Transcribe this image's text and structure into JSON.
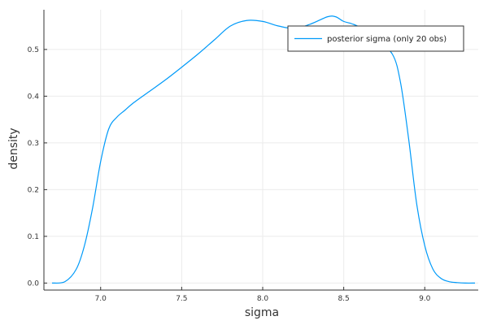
{
  "chart_data": {
    "type": "line",
    "title": "",
    "xlabel": "sigma",
    "ylabel": "density",
    "xlim": [
      6.65,
      9.33
    ],
    "ylim": [
      -0.015,
      0.585
    ],
    "x_ticks": [
      7.0,
      7.5,
      8.0,
      8.5,
      9.0
    ],
    "x_tick_labels": [
      "7.0",
      "7.5",
      "8.0",
      "8.5",
      "9.0"
    ],
    "y_ticks": [
      0.0,
      0.1,
      0.2,
      0.3,
      0.4,
      0.5
    ],
    "y_tick_labels": [
      "0.0",
      "0.1",
      "0.2",
      "0.3",
      "0.4",
      "0.5"
    ],
    "grid": true,
    "legend_position": "top-right",
    "series": [
      {
        "name": "posterior sigma (only 20 obs)",
        "color": "#009af9",
        "x": [
          6.7,
          6.78,
          6.85,
          6.9,
          6.95,
          7.0,
          7.05,
          7.1,
          7.15,
          7.2,
          7.3,
          7.4,
          7.5,
          7.6,
          7.7,
          7.8,
          7.9,
          8.0,
          8.1,
          8.2,
          8.3,
          8.4,
          8.45,
          8.5,
          8.55,
          8.6,
          8.7,
          8.8,
          8.85,
          8.9,
          8.95,
          9.0,
          9.05,
          9.1,
          9.15,
          9.2,
          9.25,
          9.31
        ],
        "y": [
          0.0,
          0.003,
          0.03,
          0.08,
          0.16,
          0.26,
          0.33,
          0.355,
          0.37,
          0.385,
          0.41,
          0.435,
          0.462,
          0.49,
          0.52,
          0.55,
          0.562,
          0.56,
          0.55,
          0.545,
          0.555,
          0.57,
          0.57,
          0.56,
          0.555,
          0.547,
          0.52,
          0.49,
          0.43,
          0.31,
          0.17,
          0.08,
          0.03,
          0.01,
          0.003,
          0.001,
          0.0,
          0.0
        ]
      }
    ]
  }
}
